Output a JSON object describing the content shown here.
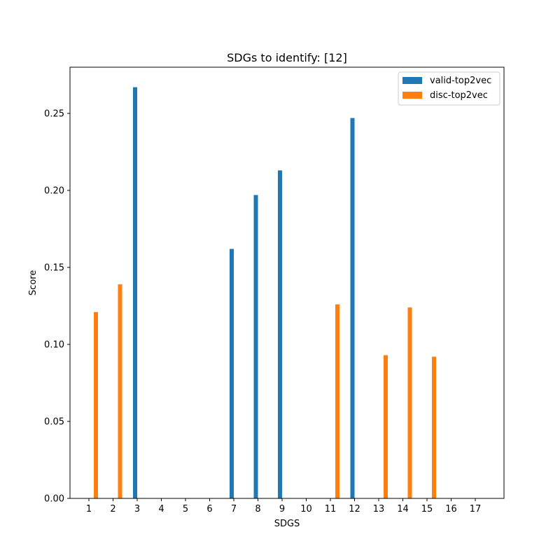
{
  "chart_data": {
    "type": "bar",
    "title": "SDGs to identify: [12]",
    "xlabel": "SDGS",
    "ylabel": "Score",
    "categories": [
      "1",
      "2",
      "3",
      "4",
      "5",
      "6",
      "7",
      "8",
      "9",
      "10",
      "11",
      "12",
      "13",
      "14",
      "15",
      "16",
      "17"
    ],
    "ylim": [
      0,
      0.28
    ],
    "yticks": [
      "0.00",
      "0.05",
      "0.10",
      "0.15",
      "0.20",
      "0.25"
    ],
    "series": [
      {
        "name": "valid-top2vec",
        "color": "#1f77b4",
        "values": [
          0,
          0,
          0.267,
          0,
          0,
          0,
          0.162,
          0.197,
          0.213,
          0,
          0,
          0.247,
          0,
          0,
          0,
          0,
          0
        ]
      },
      {
        "name": "disc-top2vec",
        "color": "#ff7f0e",
        "values": [
          0.121,
          0.139,
          0,
          0,
          0,
          0,
          0,
          0,
          0,
          0,
          0.126,
          0,
          0.093,
          0.124,
          0.092,
          0,
          0
        ]
      }
    ],
    "legend_position": "top-right",
    "grid": false
  }
}
